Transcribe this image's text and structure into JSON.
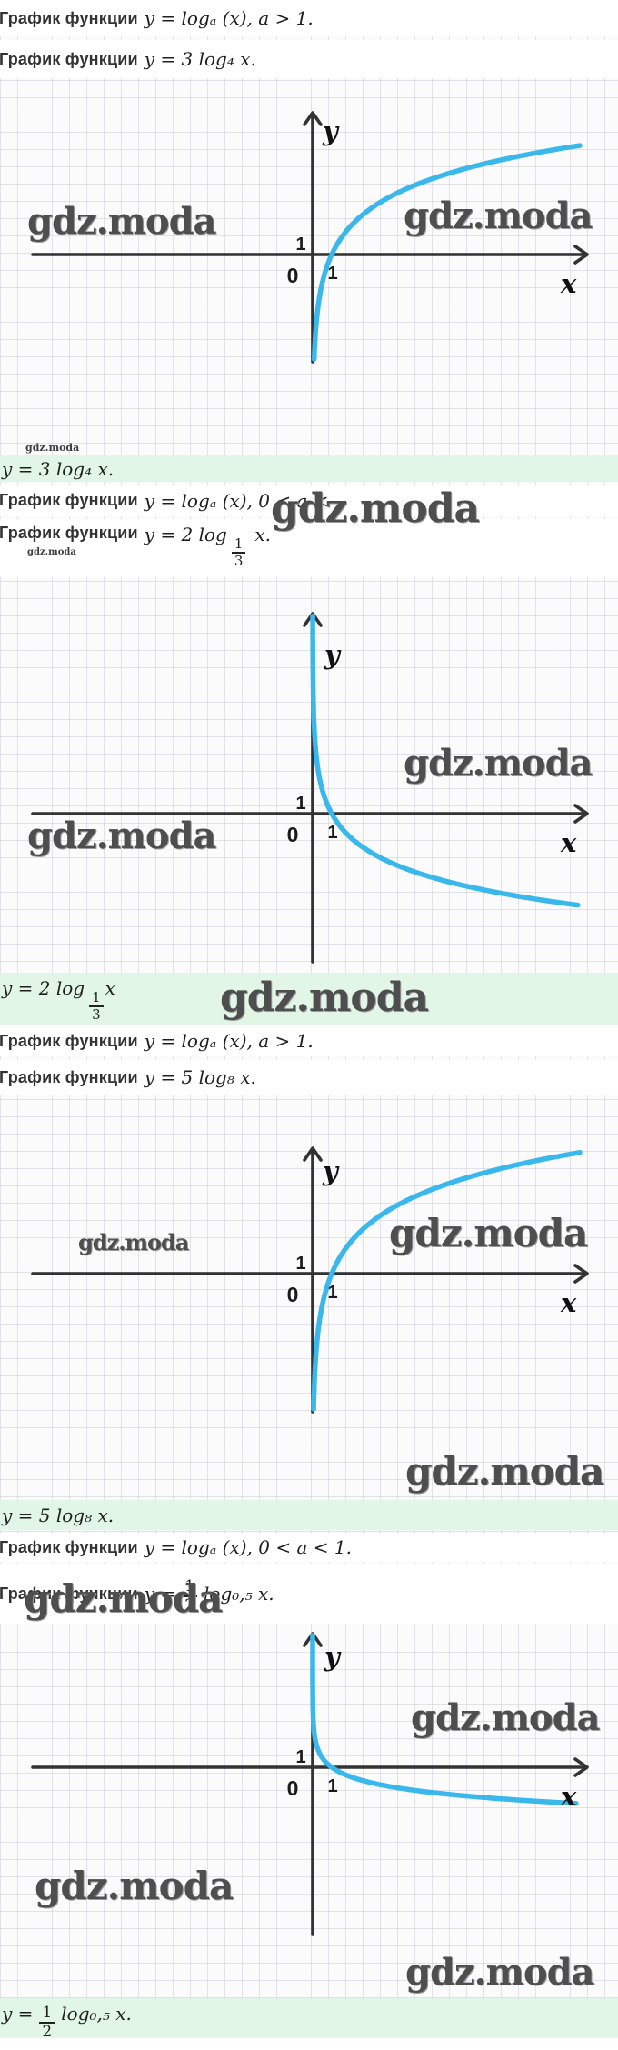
{
  "watermark": {
    "text": "gdz.moda"
  },
  "colors": {
    "curve": "#3bb8eb",
    "band": "#e1f6e6",
    "axis": "#333333",
    "grid": "#dcdde4",
    "watermark": "#4e4e4e"
  },
  "lines": {
    "a": {
      "label": "График функции",
      "math": "y = logₐ (x), a > 1."
    },
    "b": {
      "label": "График функции",
      "math": "y = 3 log₄ x."
    },
    "c": {
      "label": "График функции",
      "math": "y = logₐ (x), 0 < a <"
    },
    "d": {
      "label": "График функции",
      "math_pre": "y = 2 log",
      "frac_num": "1",
      "frac_den": "3",
      "math_post": "x."
    },
    "e": {
      "label": "График функции",
      "math": "y = logₐ (x), a > 1."
    },
    "f": {
      "label": "График функции",
      "math": "y = 5 log₈ x."
    },
    "g": {
      "label": "График функции",
      "math": "y = logₐ (x), 0 < a < 1."
    },
    "h": {
      "label": "График функции",
      "math_pre": "y =",
      "frac_num": "1",
      "frac_den": "2",
      "math_post": "log₀,₅ x."
    }
  },
  "bands": {
    "b1": {
      "math": "y = 3 log₄ x."
    },
    "b2": {
      "math_pre": "y = 2 log",
      "frac_num": "1",
      "frac_den": "3",
      "math_post": "x"
    },
    "b3": {
      "math": "y = 5 log₈ x."
    },
    "b4": {
      "math_pre": "y =",
      "frac_num": "1",
      "frac_den": "2",
      "math_post": "log₀,₅ x."
    }
  },
  "chart_data": [
    {
      "type": "line",
      "id": "graph-1",
      "equation": "y = 3 log₄ x",
      "function_family": "logarithmic",
      "coefficient": 3,
      "base": 4,
      "base_display": "4",
      "trend": "increasing",
      "domain": "x > 0",
      "vertical_asymptote": "x = 0",
      "key_points": [
        [
          1,
          0
        ],
        [
          4,
          3
        ]
      ],
      "x_range": [
        0,
        14
      ],
      "y_range": [
        -6,
        6
      ],
      "grid": true,
      "curve_color": "#3bb8eb",
      "axis": {
        "x_label": "x",
        "y_label": "y",
        "origin_label": "0",
        "x_tick_label": "1",
        "y_tick_label": "1"
      }
    },
    {
      "type": "line",
      "id": "graph-2",
      "equation": "y = 2 log₁/₃ x",
      "function_family": "logarithmic",
      "coefficient": 2,
      "base": 0.33333,
      "base_display": "1/3",
      "trend": "decreasing",
      "domain": "x > 0",
      "vertical_asymptote": "x = 0",
      "key_points": [
        [
          1,
          0
        ],
        [
          3,
          -2
        ]
      ],
      "x_range": [
        0,
        14
      ],
      "y_range": [
        -6,
        11
      ],
      "grid": true,
      "curve_color": "#3bb8eb",
      "axis": {
        "x_label": "x",
        "y_label": "y",
        "origin_label": "0",
        "x_tick_label": "1",
        "y_tick_label": "1"
      }
    },
    {
      "type": "line",
      "id": "graph-3",
      "equation": "y = 5 log₈ x",
      "function_family": "logarithmic",
      "coefficient": 5,
      "base": 8,
      "base_display": "8",
      "trend": "increasing",
      "domain": "x > 0",
      "vertical_asymptote": "x = 0",
      "key_points": [
        [
          1,
          0
        ],
        [
          8,
          5
        ]
      ],
      "x_range": [
        0,
        14
      ],
      "y_range": [
        -7,
        7
      ],
      "grid": true,
      "curve_color": "#3bb8eb",
      "axis": {
        "x_label": "x",
        "y_label": "y",
        "origin_label": "0",
        "x_tick_label": "1",
        "y_tick_label": "1"
      }
    },
    {
      "type": "line",
      "id": "graph-4",
      "equation": "y = 1/2 log₀,₅ x",
      "function_family": "logarithmic",
      "coefficient": 0.5,
      "base": 0.5,
      "base_display": "0,5",
      "trend": "decreasing",
      "domain": "x > 0",
      "vertical_asymptote": "x = 0",
      "key_points": [
        [
          1,
          0
        ],
        [
          2,
          -0.5
        ]
      ],
      "x_range": [
        0,
        14
      ],
      "y_range": [
        -2,
        7
      ],
      "grid": true,
      "curve_color": "#3bb8eb",
      "axis": {
        "x_label": "x",
        "y_label": "y",
        "origin_label": "0",
        "x_tick_label": "1",
        "y_tick_label": "1"
      }
    }
  ]
}
